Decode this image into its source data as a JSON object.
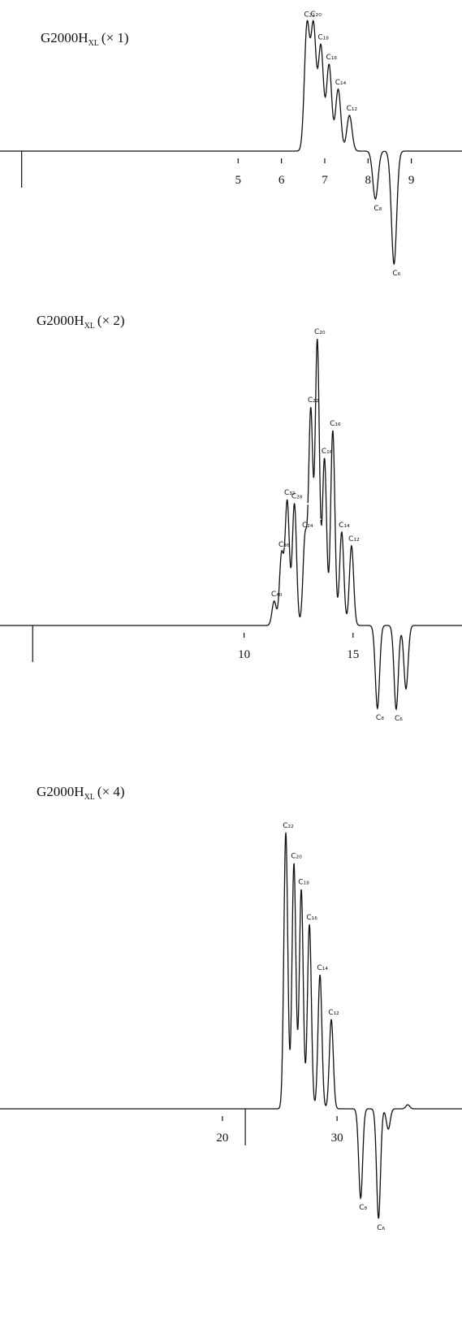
{
  "chart_data": [
    {
      "type": "chromatogram",
      "title": "G2000H",
      "title_sub": "XL",
      "title_suffix": "(× 1)",
      "xlim": [
        -0.5,
        10.17
      ],
      "ylim": [
        -164,
        186
      ],
      "xticks": [
        5,
        6,
        7,
        8,
        9
      ],
      "injection": 0,
      "peaks": {
        "labels": [
          "C₂₂",
          "C₂₀",
          "C₁₈",
          "C₁₆",
          "C₁₄",
          "C₁₂",
          "C₈",
          "C₆"
        ],
        "x": [
          6.59,
          6.74,
          6.91,
          7.1,
          7.31,
          7.57,
          8.17,
          8.6
        ],
        "values": [
          153,
          151,
          128,
          106,
          76,
          44,
          -59,
          -139
        ]
      }
    },
    {
      "type": "chromatogram",
      "title": "G2000H",
      "title_sub": "XL",
      "title_suffix": "(× 2)",
      "xlim": [
        -1.2,
        20.0
      ],
      "ylim": [
        -130,
        390
      ],
      "xticks": [
        10,
        15
      ],
      "injection": 0.3,
      "peaks": {
        "labels": [
          "C₄₀",
          "C₃₆",
          "C₃₂",
          "C₂₈",
          "C₂₄",
          "C₂₂",
          "C₂₀",
          "C₁₈",
          "C₁₆",
          "C₁₄",
          "C₁₂",
          "C₈",
          "C₆",
          null
        ],
        "x": [
          11.38,
          11.72,
          11.98,
          12.31,
          12.8,
          13.06,
          13.36,
          13.69,
          14.07,
          14.48,
          14.93,
          16.12,
          16.98,
          17.43
        ],
        "values": [
          30,
          87,
          152,
          150,
          108,
          263,
          350,
          205,
          240,
          115,
          98,
          -102,
          -103,
          -78
        ]
      }
    },
    {
      "type": "chromatogram",
      "title": "G2000H",
      "title_sub": "XL",
      "title_suffix": "(× 4)",
      "xlim": [
        0.6,
        40.9
      ],
      "ylim": [
        -276,
        465
      ],
      "xticks": [
        20,
        30
      ],
      "injection": 22,
      "peaks": {
        "labels": [
          "C₂₂",
          "C₂₀",
          "C₁₈",
          "C₁₆",
          "C₁₄",
          "C₁₂",
          "C₈",
          "C₆",
          null,
          null
        ],
        "x": [
          25.53,
          26.24,
          26.88,
          27.59,
          28.51,
          29.5,
          32.06,
          33.62,
          34.47,
          36.17
        ],
        "values": [
          340,
          302,
          270,
          227,
          165,
          110,
          -110,
          -135,
          -25,
          5
        ]
      }
    }
  ]
}
